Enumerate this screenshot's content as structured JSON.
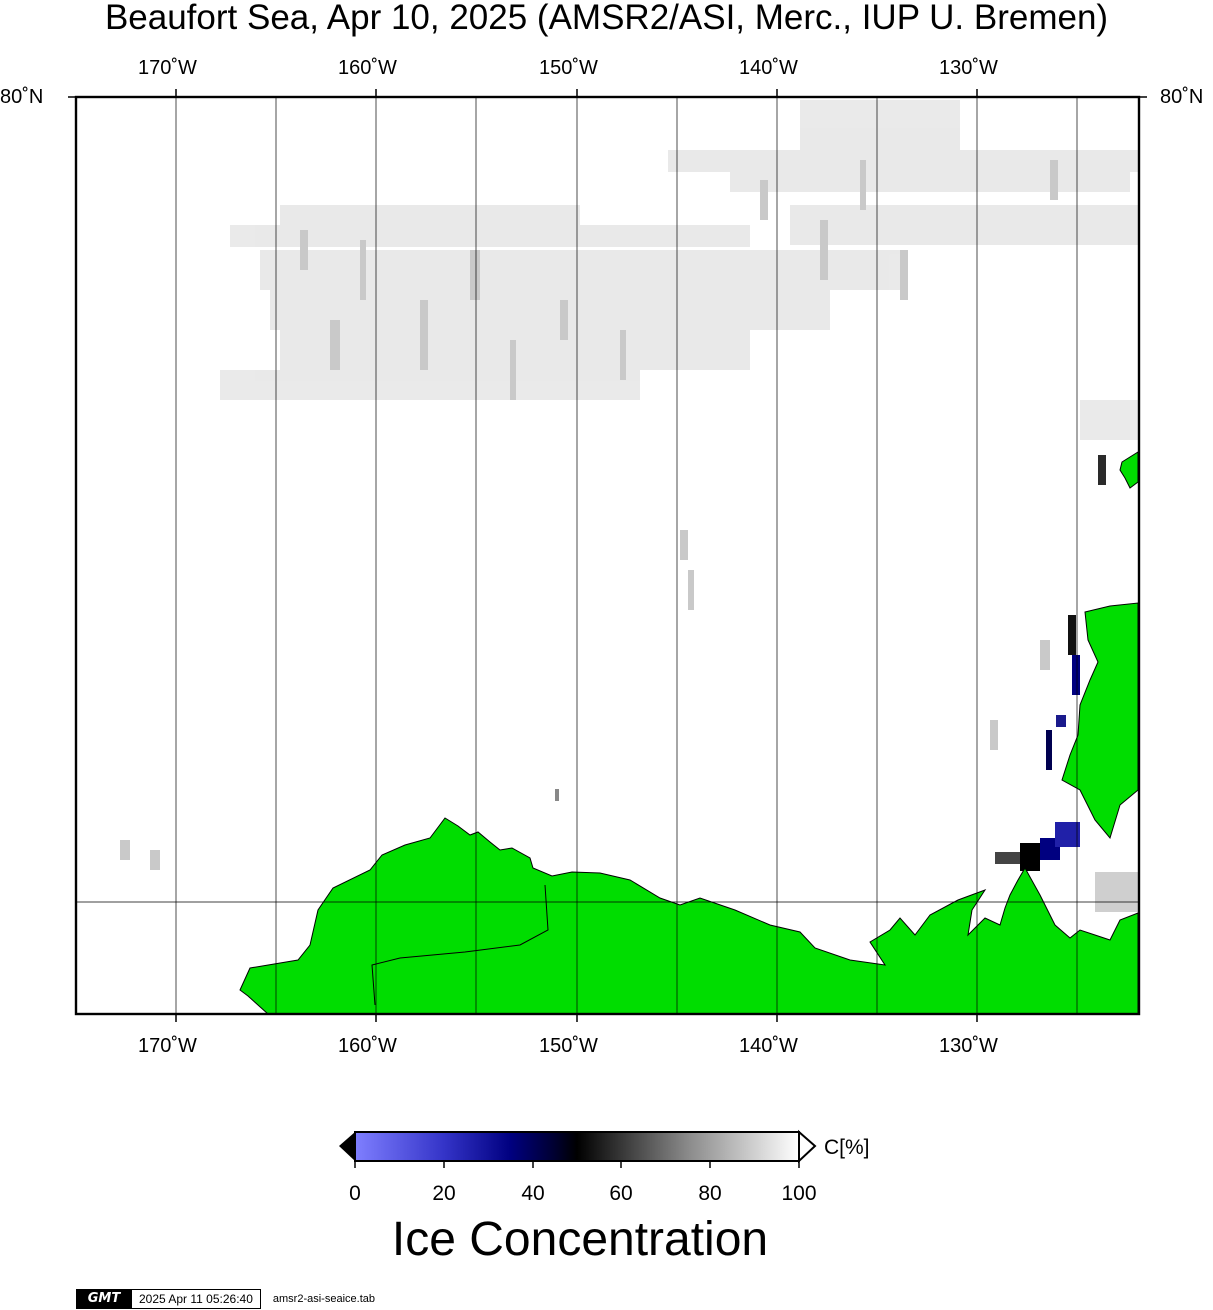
{
  "title": "Beaufort Sea, Apr 10, 2025 (AMSR2/ASI, Merc., IUP U. Bremen)",
  "map": {
    "longitude_labels": [
      "170˚W",
      "160˚W",
      "150˚W",
      "140˚W",
      "130˚W"
    ],
    "latitude_labels": [
      "80˚N",
      "80˚N"
    ],
    "colors": {
      "land": "#00dd00",
      "open_water": "#ffffff",
      "frame": "#000000",
      "gridline": "#000000"
    }
  },
  "colorbar": {
    "title": "Ice Concentration",
    "unit": "C[%]",
    "ticks": [
      "0",
      "20",
      "40",
      "60",
      "80",
      "100"
    ],
    "color_stops": [
      "#7f7fff",
      "#000080",
      "#000000",
      "#808080",
      "#ffffff"
    ]
  },
  "footer": {
    "logo": "GMT",
    "timestamp": "2025 Apr 11 05:26:40",
    "filename": "amsr2-asi-seaice.tab"
  }
}
